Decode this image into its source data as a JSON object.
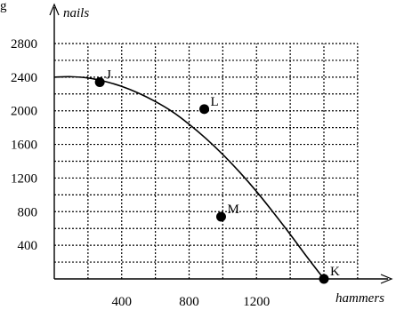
{
  "chart_data": {
    "type": "line",
    "xlabel": "hammers",
    "ylabel": "nails",
    "xlim": [
      0,
      2000
    ],
    "ylim": [
      0,
      2800
    ],
    "x_grid_step": 200,
    "y_grid_step": 200,
    "grid": true,
    "x_ticks": [
      400,
      800,
      1200
    ],
    "y_ticks": [
      400,
      800,
      1200,
      1600,
      2000,
      2400,
      2800
    ],
    "curve": {
      "x": [
        0,
        100,
        200,
        300,
        400,
        500,
        600,
        700,
        800,
        900,
        1000,
        1100,
        1200,
        1300,
        1400,
        1500,
        1600
      ],
      "y": [
        2400,
        2405,
        2390,
        2350,
        2290,
        2210,
        2110,
        1990,
        1840,
        1670,
        1480,
        1270,
        1040,
        790,
        530,
        260,
        0
      ]
    },
    "points": [
      {
        "label": "J",
        "x": 270,
        "y": 2340
      },
      {
        "label": "L",
        "x": 890,
        "y": 2020
      },
      {
        "label": "M",
        "x": 990,
        "y": 740
      },
      {
        "label": "K",
        "x": 1600,
        "y": 0
      }
    ],
    "partial_title": "g"
  }
}
